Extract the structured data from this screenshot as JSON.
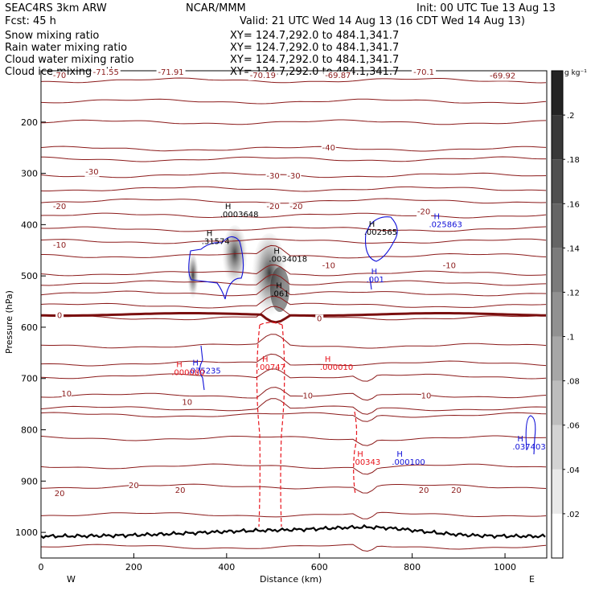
{
  "header": {
    "model": "SEAC4RS  3km ARW",
    "org": "NCAR/MMM",
    "init": "Init: 00 UTC Tue 13 Aug 13",
    "fcst": "Fcst:  45 h",
    "valid": "Valid: 21 UTC Wed 14 Aug 13 (16 CDT Wed 14 Aug 13)",
    "fields": [
      {
        "name": "Snow mixing ratio",
        "xy": "XY= 124.7,292.0 to 484.1,341.7",
        "color": "#000000"
      },
      {
        "name": "Rain water mixing ratio",
        "xy": "XY= 124.7,292.0 to 484.1,341.7",
        "color": "#e8141c"
      },
      {
        "name": "Cloud water mixing ratio",
        "xy": "XY= 124.7,292.0 to 484.1,341.7",
        "color": "#1010d8"
      },
      {
        "name": "Cloud ice mixing ratio",
        "xy": "XY= 124.7,292.0 to 484.1,341.7",
        "color": "#000000"
      }
    ]
  },
  "chart_data": {
    "type": "cross-section",
    "xlabel": "Distance (km)",
    "ylabel": "Pressure (hPa)",
    "xlim": [
      0,
      1090
    ],
    "ylim_hpa": [
      1050,
      100
    ],
    "x_ticks": [
      "0",
      "200",
      "400",
      "600",
      "800",
      "1000"
    ],
    "y_ticks": [
      "1000",
      "900",
      "800",
      "700",
      "600",
      "500",
      "400",
      "300",
      "200"
    ],
    "left_end_label": "W",
    "right_end_label": "E",
    "colorbar": {
      "unit": "g kg⁻¹",
      "levels": [
        ".02",
        ".04",
        ".06",
        ".08",
        ".1",
        ".12",
        ".14",
        ".16",
        ".18",
        ".2"
      ]
    },
    "temperature_labels": [
      {
        "text": "-70",
        "x": 40,
        "p": 114
      },
      {
        "text": "-71.55",
        "x": 140,
        "p": 108
      },
      {
        "text": "-71.91",
        "x": 280,
        "p": 108
      },
      {
        "text": "-70.19",
        "x": 478,
        "p": 114
      },
      {
        "text": "-69.87",
        "x": 640,
        "p": 114
      },
      {
        "text": "-70.1",
        "x": 825,
        "p": 108
      },
      {
        "text": "-69.92",
        "x": 995,
        "p": 115
      },
      {
        "text": "-40",
        "x": 620,
        "p": 255
      },
      {
        "text": "-30",
        "x": 110,
        "p": 302
      },
      {
        "text": "-30",
        "x": 500,
        "p": 310
      },
      {
        "text": "-30",
        "x": 545,
        "p": 310
      },
      {
        "text": "-20",
        "x": 40,
        "p": 370
      },
      {
        "text": "-20",
        "x": 500,
        "p": 370
      },
      {
        "text": "-20",
        "x": 550,
        "p": 370
      },
      {
        "text": "-20",
        "x": 825,
        "p": 380
      },
      {
        "text": "-10",
        "x": 40,
        "p": 445
      },
      {
        "text": "-10",
        "x": 620,
        "p": 485
      },
      {
        "text": "-10",
        "x": 880,
        "p": 485
      },
      {
        "text": "0",
        "x": 40,
        "p": 582
      },
      {
        "text": "0",
        "x": 600,
        "p": 588
      },
      {
        "text": "10",
        "x": 55,
        "p": 735
      },
      {
        "text": "10",
        "x": 315,
        "p": 751
      },
      {
        "text": "10",
        "x": 575,
        "p": 739
      },
      {
        "text": "10",
        "x": 830,
        "p": 739
      },
      {
        "text": "20",
        "x": 40,
        "p": 929
      },
      {
        "text": "20",
        "x": 200,
        "p": 914
      },
      {
        "text": "20",
        "x": 300,
        "p": 923
      },
      {
        "text": "20",
        "x": 825,
        "p": 923
      },
      {
        "text": "20",
        "x": 895,
        "p": 923
      }
    ],
    "extrema": [
      {
        "mark": "H",
        "value": ".0003648",
        "x": 400,
        "p": 385,
        "series": "Snow mixing ratio"
      },
      {
        "mark": "H",
        "value": ".0034018",
        "x": 505,
        "p": 472,
        "series": "Snow mixing ratio"
      },
      {
        "mark": "H",
        "value": ".002565",
        "x": 710,
        "p": 420,
        "series": "Snow mixing ratio"
      },
      {
        "mark": "H",
        "value": ".31574",
        "x": 360,
        "p": 438,
        "series": "Cloud ice mixing ratio"
      },
      {
        "mark": "H",
        "value": ".061",
        "x": 510,
        "p": 540,
        "series": "Cloud ice mixing ratio"
      },
      {
        "mark": "H",
        "value": ".025863",
        "x": 850,
        "p": 405,
        "series": "Cloud water mixing ratio"
      },
      {
        "mark": "H",
        "value": ".001",
        "x": 715,
        "p": 512,
        "series": "Cloud water mixing ratio"
      },
      {
        "mark": "H",
        "value": ".075235",
        "x": 330,
        "p": 690,
        "series": "Cloud water mixing ratio"
      },
      {
        "mark": "H",
        "value": ".000100",
        "x": 770,
        "p": 868,
        "series": "Cloud water mixing ratio"
      },
      {
        "mark": "H",
        "value": ".037403",
        "x": 1030,
        "p": 838,
        "series": "Cloud water mixing ratio"
      },
      {
        "mark": "H",
        "value": ".000080",
        "x": 295,
        "p": 693,
        "series": "Rain water mixing ratio"
      },
      {
        "mark": "H",
        "value": ".00747",
        "x": 480,
        "p": 683,
        "series": "Rain water mixing ratio"
      },
      {
        "mark": "H",
        "value": ".000010",
        "x": 615,
        "p": 683,
        "series": "Rain water mixing ratio"
      },
      {
        "mark": "H",
        "value": ".00343",
        "x": 685,
        "p": 868,
        "series": "Rain water mixing ratio"
      }
    ]
  }
}
